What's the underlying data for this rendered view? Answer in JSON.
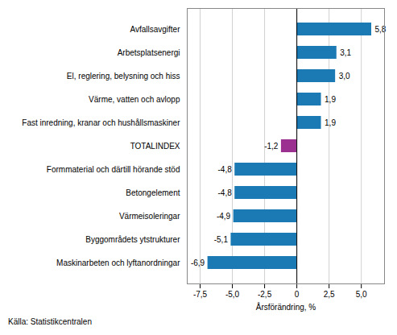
{
  "chart_data": {
    "type": "bar",
    "orientation": "horizontal",
    "categories": [
      "Maskinarbeten och lyftanordningar",
      "Byggområdets ytstrukturer",
      "Värmeisoleringar",
      "Betongelement",
      "Formmaterial och därtill hörande stöd",
      "TOTALINDEX",
      "Fast inredning, kranar och hushållsmaskiner",
      "Värme, vatten och avlopp",
      "El, reglering, belysning och hiss",
      "Arbetsplatsenergi",
      "Avfallsavgifter"
    ],
    "values": [
      -6.9,
      -5.1,
      -4.9,
      -4.8,
      -4.8,
      -1.2,
      1.9,
      1.9,
      3.0,
      3.1,
      5.8
    ],
    "value_labels": [
      "-6,9",
      "-5,1",
      "-4,9",
      "-4,8",
      "-4,8",
      "-1,2",
      "1,9",
      "1,9",
      "3,0",
      "3,1",
      "5,8"
    ],
    "data_labels": true,
    "colors": [
      "#1b7ab3",
      "#1b7ab3",
      "#1b7ab3",
      "#1b7ab3",
      "#1b7ab3",
      "#9B3090",
      "#1b7ab3",
      "#1b7ab3",
      "#1b7ab3",
      "#1b7ab3",
      "#1b7ab3"
    ],
    "x_label": "Årsförändring, %",
    "xlim": [
      -8.5,
      6.8
    ],
    "xticks": [
      {
        "value": -7.5,
        "label": "-7,5"
      },
      {
        "value": -5.0,
        "label": "-5,0"
      },
      {
        "value": -2.5,
        "label": "-2,5"
      },
      0,
      {
        "value": 2.5,
        "label": "2,5"
      },
      {
        "value": 5.0,
        "label": "5,0"
      }
    ],
    "grid": true,
    "annotations": [
      "Källa: Statistikcentralen"
    ]
  }
}
